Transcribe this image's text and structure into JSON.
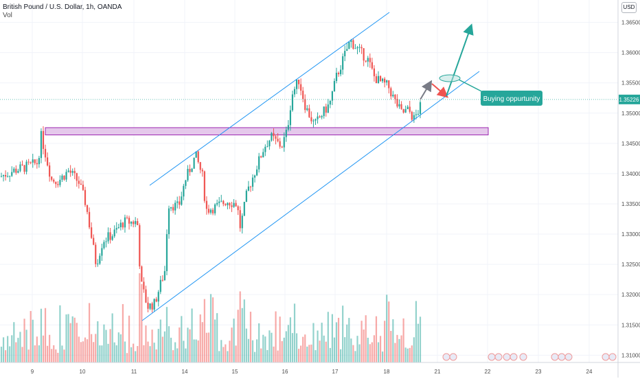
{
  "header": {
    "title": "British Pound / U.S. Dollar, 1h, OANDA",
    "volume_label": "Vol",
    "currency": "USD"
  },
  "colors": {
    "up": "#26a69a",
    "down": "#ef5350",
    "channel": "#2196f3",
    "zone_fill": "#e1bee7",
    "zone_border": "#9c27b0",
    "arrow_up": "#26a69a",
    "arrow_down": "#ef5350",
    "arrow_grey": "#787b86",
    "price_badge": "#26a69a"
  },
  "annotations": {
    "callout_text": "Buying oppurtunity"
  },
  "chart_data": {
    "type": "candlestick",
    "symbol": "GBPUSD",
    "timeframe": "1h",
    "ylim": [
      1.3085,
      1.368
    ],
    "y_ticks": [
      "1.36500",
      "1.36000",
      "1.35500",
      "1.35000",
      "1.34500",
      "1.34000",
      "1.33500",
      "1.33000",
      "1.32500",
      "1.32000",
      "1.31500",
      "1.31000"
    ],
    "x_ticks": [
      "9",
      "10",
      "11",
      "14",
      "15",
      "16",
      "17",
      "18",
      "21",
      "22",
      "23",
      "24"
    ],
    "last_price": "1.35226",
    "grid": true,
    "anchors": [
      [
        0,
        1.3395
      ],
      [
        20,
        1.3405
      ],
      [
        40,
        1.3412
      ],
      [
        55,
        1.3418
      ],
      [
        60,
        1.3462
      ],
      [
        75,
        1.339
      ],
      [
        85,
        1.3388
      ],
      [
        100,
        1.3405
      ],
      [
        115,
        1.3385
      ],
      [
        125,
        1.335
      ],
      [
        140,
        1.325
      ],
      [
        150,
        1.329
      ],
      [
        165,
        1.33
      ],
      [
        180,
        1.332
      ],
      [
        200,
        1.332
      ],
      [
        205,
        1.322
      ],
      [
        215,
        1.318
      ],
      [
        225,
        1.3185
      ],
      [
        240,
        1.324
      ],
      [
        245,
        1.335
      ],
      [
        260,
        1.3345
      ],
      [
        270,
        1.339
      ],
      [
        285,
        1.343
      ],
      [
        295,
        1.3395
      ],
      [
        300,
        1.334
      ],
      [
        315,
        1.3345
      ],
      [
        330,
        1.3355
      ],
      [
        345,
        1.335
      ],
      [
        350,
        1.331
      ],
      [
        360,
        1.337
      ],
      [
        375,
        1.3415
      ],
      [
        385,
        1.3445
      ],
      [
        395,
        1.346
      ],
      [
        410,
        1.3445
      ],
      [
        418,
        1.347
      ],
      [
        425,
        1.353
      ],
      [
        435,
        1.3555
      ],
      [
        445,
        1.351
      ],
      [
        458,
        1.348
      ],
      [
        470,
        1.35
      ],
      [
        480,
        1.3515
      ],
      [
        490,
        1.356
      ],
      [
        500,
        1.359
      ],
      [
        510,
        1.362
      ],
      [
        525,
        1.36
      ],
      [
        535,
        1.359
      ],
      [
        545,
        1.356
      ],
      [
        555,
        1.355
      ],
      [
        565,
        1.3545
      ],
      [
        575,
        1.352
      ],
      [
        585,
        1.35
      ],
      [
        595,
        1.3505
      ],
      [
        603,
        1.349
      ],
      [
        612,
        1.351
      ]
    ]
  }
}
